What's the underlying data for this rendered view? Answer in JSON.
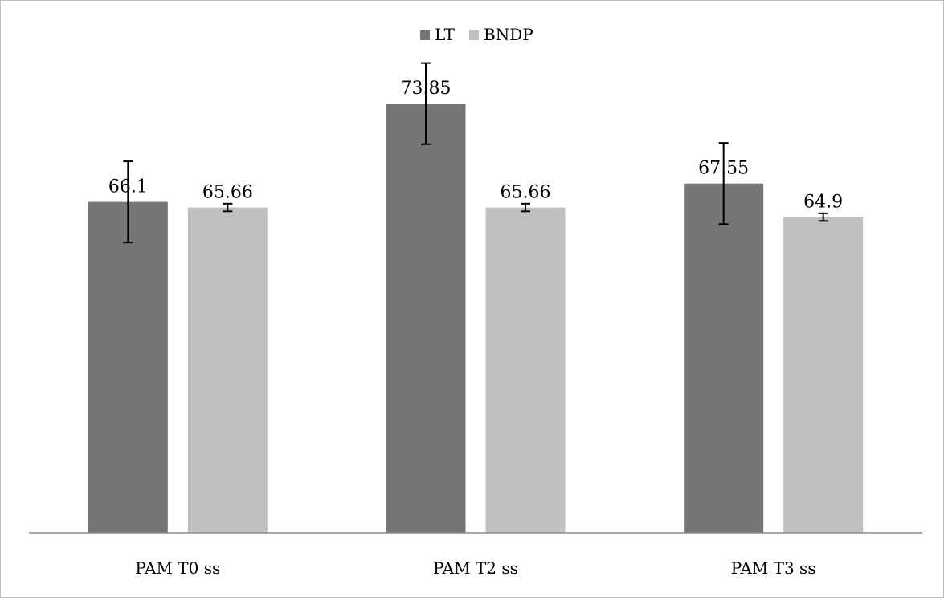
{
  "chart_data": {
    "type": "bar",
    "title": "",
    "xlabel": "",
    "ylabel": "",
    "categories": [
      "PAM T0 ss",
      "PAM T2 ss",
      "PAM T3 ss"
    ],
    "series": [
      {
        "name": "LT",
        "color": "#767676",
        "values": [
          66.1,
          73.85,
          67.55
        ],
        "labels": [
          "66.1",
          "73.85",
          "67.55"
        ],
        "error": [
          3.2,
          3.2,
          3.2
        ]
      },
      {
        "name": "BNDP",
        "color": "#c0c0c0",
        "values": [
          65.66,
          65.66,
          64.9
        ],
        "labels": [
          "65.66",
          "65.66",
          "64.9"
        ],
        "error": [
          0.3,
          0.3,
          0.3
        ]
      }
    ],
    "ylim": [
      40,
      76
    ],
    "legend_position": "top-center",
    "grid": false,
    "y_axis_visible": false
  }
}
